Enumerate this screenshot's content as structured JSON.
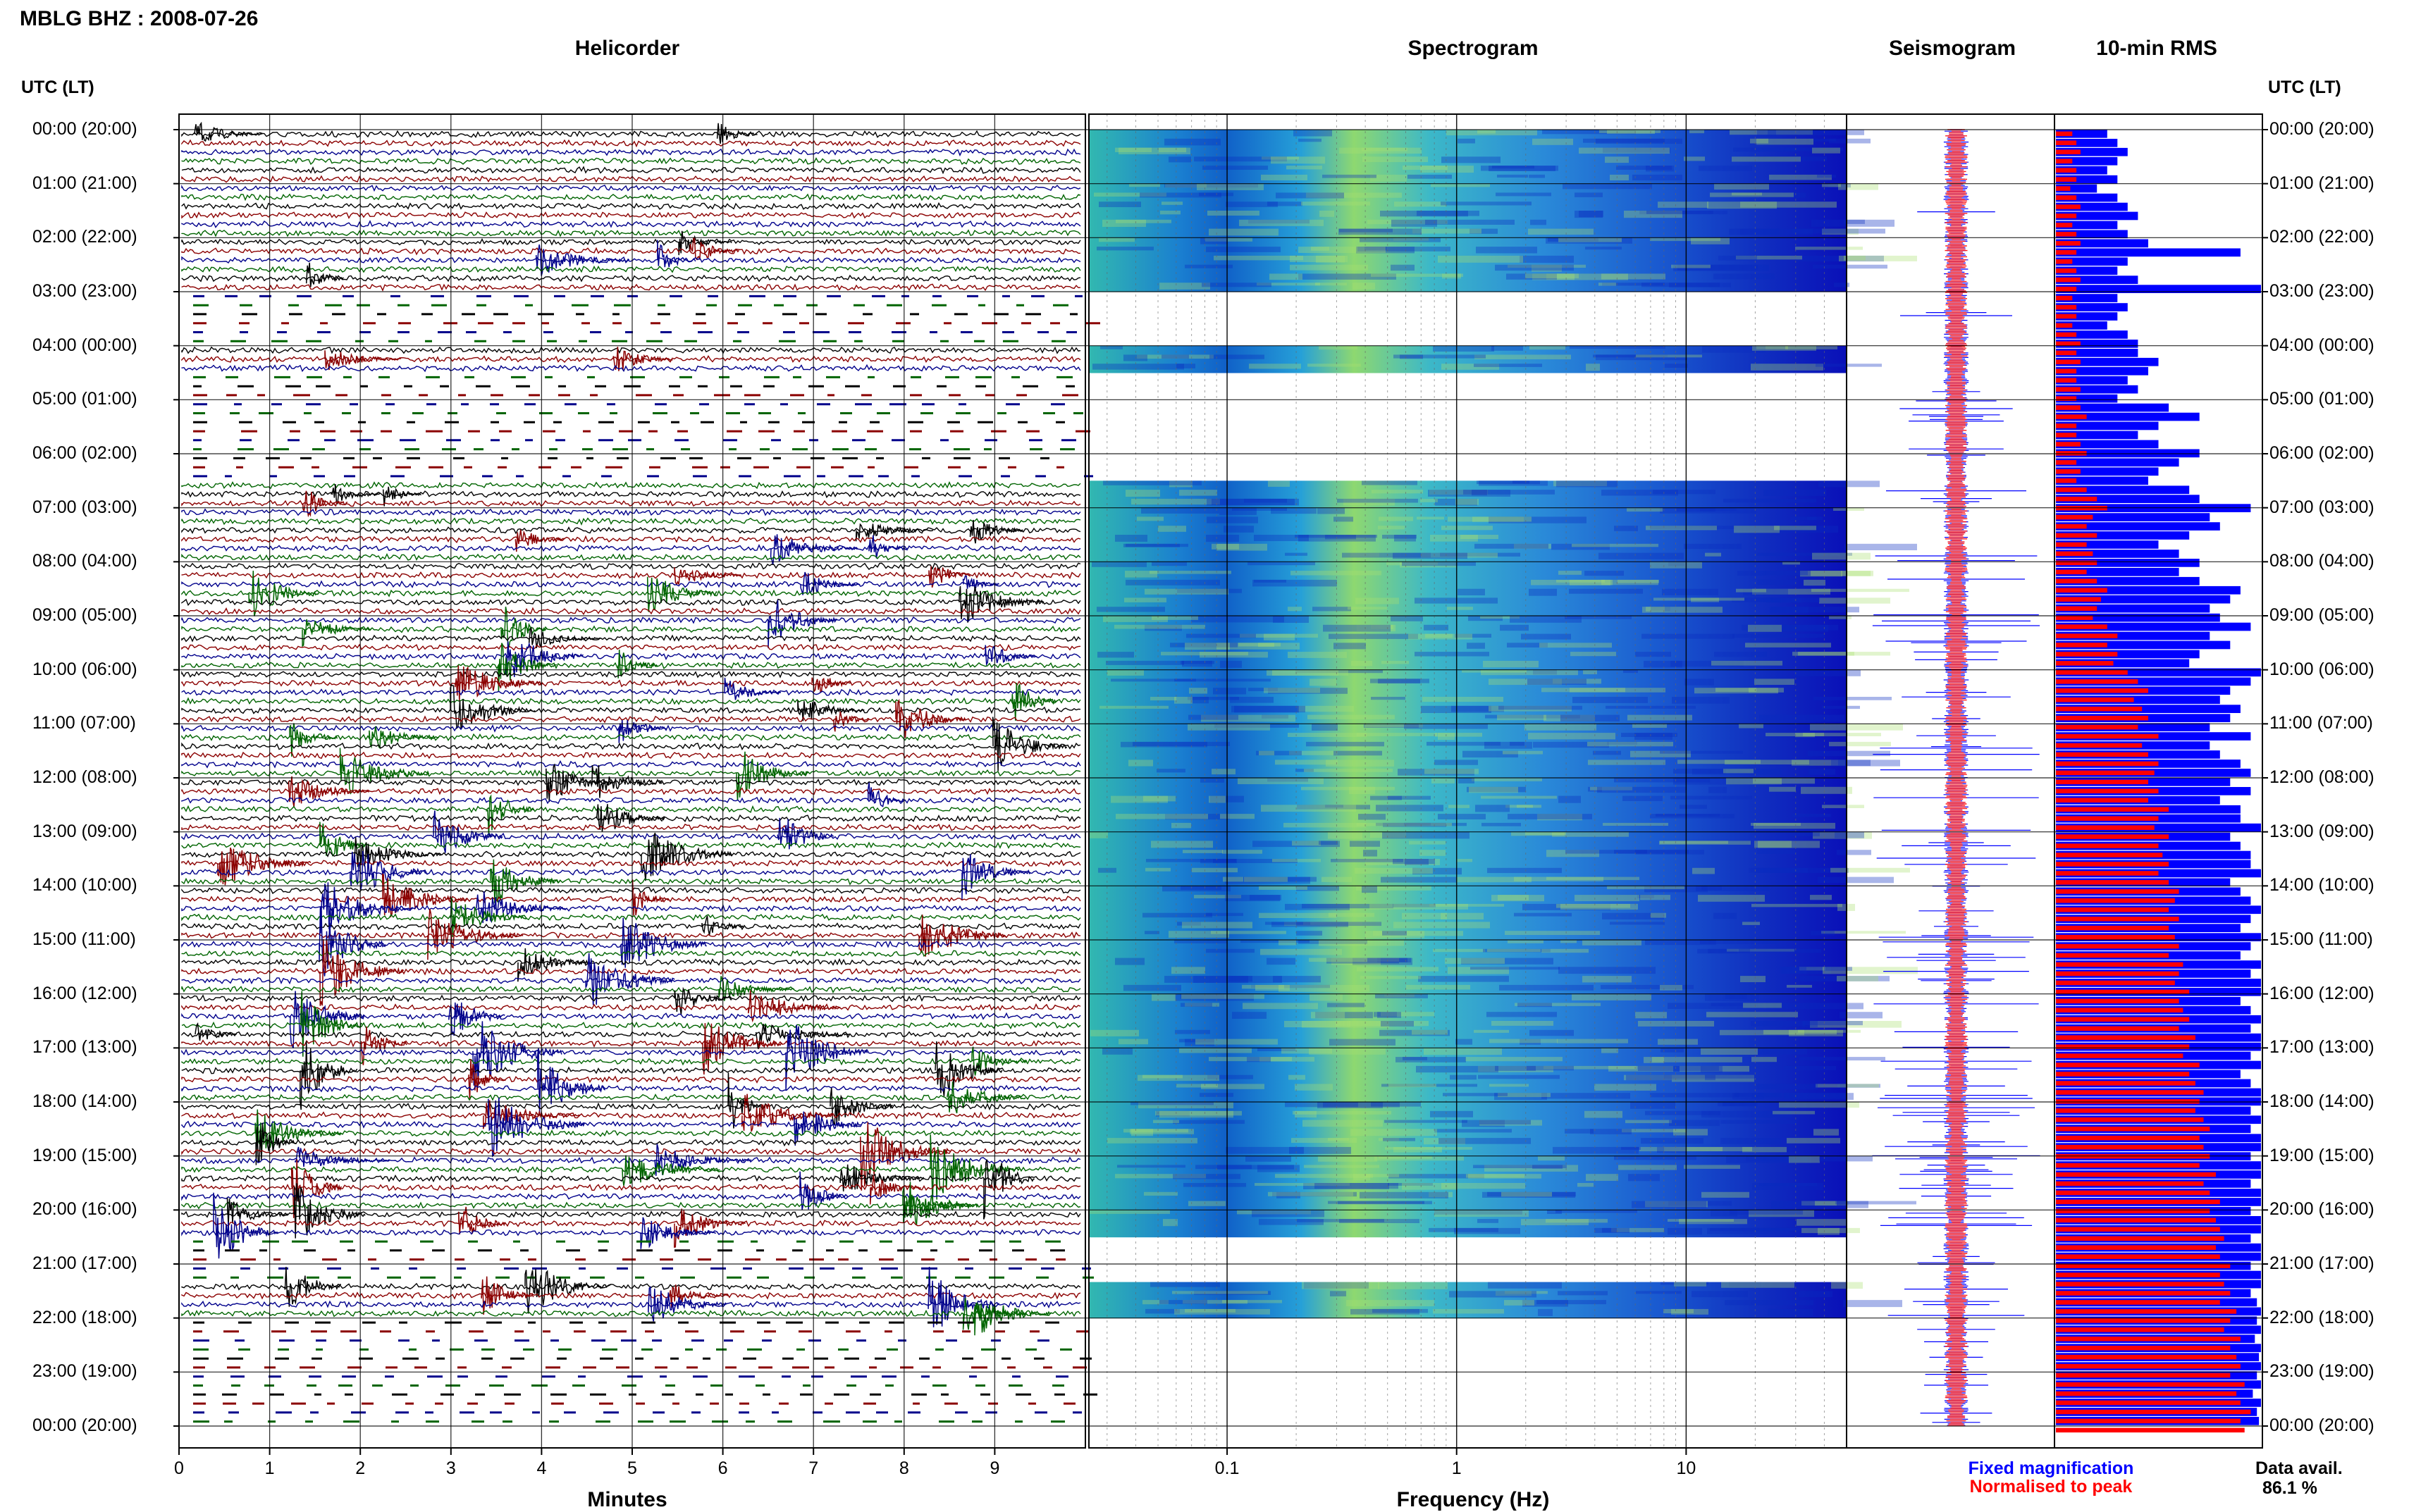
{
  "header": {
    "title": "MBLG BHZ : 2008-07-26"
  },
  "panels": {
    "helicorder": "Helicorder",
    "spectrogram": "Spectrogram",
    "seismogram": "Seismogram",
    "rms": "10-min RMS"
  },
  "left_axis_title": "UTC (LT)",
  "right_axis_title": "UTC (LT)",
  "hour_labels": [
    "00:00 (20:00)",
    "01:00 (21:00)",
    "02:00 (22:00)",
    "03:00 (23:00)",
    "04:00 (00:00)",
    "05:00 (01:00)",
    "06:00 (02:00)",
    "07:00 (03:00)",
    "08:00 (04:00)",
    "09:00 (05:00)",
    "10:00 (06:00)",
    "11:00 (07:00)",
    "12:00 (08:00)",
    "13:00 (09:00)",
    "14:00 (10:00)",
    "15:00 (11:00)",
    "16:00 (12:00)",
    "17:00 (13:00)",
    "18:00 (14:00)",
    "19:00 (15:00)",
    "20:00 (16:00)",
    "21:00 (17:00)",
    "22:00 (18:00)",
    "23:00 (19:00)",
    "00:00 (20:00)"
  ],
  "helicorder_axis": {
    "label": "Minutes",
    "ticks": [
      "0",
      "1",
      "2",
      "3",
      "4",
      "5",
      "6",
      "7",
      "8",
      "9"
    ]
  },
  "spectrogram_axis": {
    "label": "Frequency (Hz)",
    "ticks": [
      "0.1",
      "1",
      "10"
    ]
  },
  "legend": {
    "fixed": "Fixed magnification",
    "normalised": "Normalised to peak"
  },
  "data_avail": {
    "label": "Data avail.",
    "value": "86.1 %"
  },
  "colors": {
    "fixed": "#0000ff",
    "normalised": "#ff0000",
    "trace_colors": [
      "#000000",
      "#8b0000",
      "#00008b",
      "#006400"
    ]
  },
  "chart_data": {
    "type": "heatmap",
    "title": "MBLG BHZ : 2008-07-26",
    "helicorder": {
      "xlabel": "Minutes",
      "xlim": [
        0,
        10
      ],
      "rows_per_hour": 6
    },
    "spectrogram": {
      "xlabel": "Frequency (Hz)",
      "xscale": "log",
      "xlim": [
        0.025,
        50
      ]
    },
    "gaps_hours": [
      [
        3.0,
        3.9
      ],
      [
        4.5,
        6.5
      ],
      [
        20.4,
        21.2
      ],
      [
        22.0,
        24.0
      ]
    ],
    "rms_blue": [
      0.25,
      0.3,
      0.35,
      0.3,
      0.25,
      0.3,
      0.2,
      0.3,
      0.35,
      0.4,
      0.3,
      0.35,
      0.45,
      0.9,
      0.35,
      0.3,
      0.4,
      1.0,
      0.3,
      0.35,
      0.3,
      0.25,
      0.35,
      0.4,
      0.4,
      0.5,
      0.45,
      0.35,
      0.4,
      0.3,
      0.55,
      0.7,
      0.5,
      0.4,
      0.5,
      0.7,
      0.6,
      0.5,
      0.45,
      0.65,
      0.7,
      0.95,
      0.75,
      0.8,
      0.65,
      0.5,
      0.6,
      0.7,
      0.6,
      0.7,
      0.9,
      0.85,
      0.75,
      0.8,
      0.95,
      0.75,
      0.85,
      0.7,
      0.65,
      1.0,
      0.95,
      0.85,
      0.8,
      0.9,
      0.85,
      0.75,
      0.95,
      0.75,
      0.8,
      0.9,
      0.95,
      0.85,
      0.95,
      0.8,
      0.9,
      0.9,
      1.0,
      0.85,
      0.9,
      0.95,
      0.95,
      1.0,
      0.85,
      0.9,
      0.95,
      1.0,
      0.95,
      0.9,
      1.0,
      0.95,
      0.9,
      1.0,
      0.95,
      1.0,
      1.0,
      0.9,
      0.95,
      1.0,
      0.95,
      1.0,
      1.0,
      0.95,
      1.0,
      0.9,
      0.95,
      1.0,
      1.0,
      0.95,
      1.0,
      0.95,
      1.0,
      1.0,
      0.95,
      1.0,
      1.0,
      0.95,
      1.0,
      1.0,
      0.95,
      1.0,
      1.0,
      0.95,
      1.0,
      1.0,
      0.95,
      1.0,
      1.0,
      0.95,
      0.98,
      1.0,
      0.98,
      1.0,
      0.97,
      1.0,
      0.99,
      1.0,
      0.98,
      1.0,
      0.96,
      1.0,
      0.98,
      0.99
    ],
    "rms_red": [
      0.08,
      0.1,
      0.12,
      0.08,
      0.1,
      0.1,
      0.07,
      0.1,
      0.12,
      0.1,
      0.08,
      0.1,
      0.12,
      0.1,
      0.08,
      0.1,
      0.12,
      0.1,
      0.08,
      0.1,
      0.1,
      0.08,
      0.1,
      0.12,
      0.1,
      0.12,
      0.1,
      0.1,
      0.12,
      0.1,
      0.12,
      0.15,
      0.1,
      0.1,
      0.12,
      0.15,
      0.1,
      0.12,
      0.1,
      0.15,
      0.2,
      0.25,
      0.18,
      0.15,
      0.2,
      0.15,
      0.18,
      0.2,
      0.15,
      0.2,
      0.25,
      0.22,
      0.2,
      0.18,
      0.25,
      0.3,
      0.25,
      0.3,
      0.28,
      0.35,
      0.4,
      0.45,
      0.38,
      0.42,
      0.45,
      0.4,
      0.5,
      0.42,
      0.45,
      0.5,
      0.48,
      0.45,
      0.5,
      0.45,
      0.55,
      0.5,
      0.48,
      0.55,
      0.5,
      0.52,
      0.55,
      0.5,
      0.55,
      0.6,
      0.58,
      0.55,
      0.6,
      0.55,
      0.58,
      0.6,
      0.55,
      0.62,
      0.6,
      0.58,
      0.65,
      0.6,
      0.62,
      0.65,
      0.6,
      0.68,
      0.65,
      0.62,
      0.7,
      0.65,
      0.68,
      0.72,
      0.7,
      0.68,
      0.72,
      0.75,
      0.7,
      0.72,
      0.75,
      0.7,
      0.78,
      0.72,
      0.75,
      0.8,
      0.75,
      0.78,
      0.8,
      0.82,
      0.78,
      0.8,
      0.85,
      0.8,
      0.82,
      0.85,
      0.8,
      0.88,
      0.85,
      0.82,
      0.9,
      0.85,
      0.88,
      0.9,
      0.85,
      0.92,
      0.88,
      0.9,
      0.95,
      0.9,
      0.92
    ]
  }
}
